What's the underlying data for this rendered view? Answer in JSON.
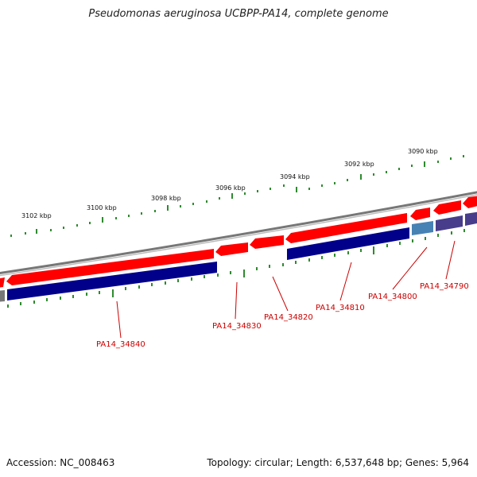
{
  "title": "Pseudomonas aeruginosa UCBPP-PA14, complete genome",
  "footer": {
    "accession": "Accession: NC_008463",
    "summary": "Topology: circular; Length: 6,537,648 bp; Genes: 5,964"
  },
  "scale_labels": [
    "3090 kbp",
    "3092 kbp",
    "3094 kbp",
    "3096 kbp",
    "3098 kbp",
    "3100 kbp",
    "3102 kbp"
  ],
  "gene_labels": [
    "PA14_34790",
    "PA14_34800",
    "PA14_34810",
    "PA14_34820",
    "PA14_34830",
    "PA14_34840"
  ],
  "colors": {
    "backbone": "#808080",
    "forward_feature": "#ff0000",
    "reverse_cds": "#00008b",
    "reverse_cds_alt": "#4682b4",
    "reverse_cds_purple": "#483d8b",
    "ticks": "#008000",
    "label": "#cc0000"
  }
}
